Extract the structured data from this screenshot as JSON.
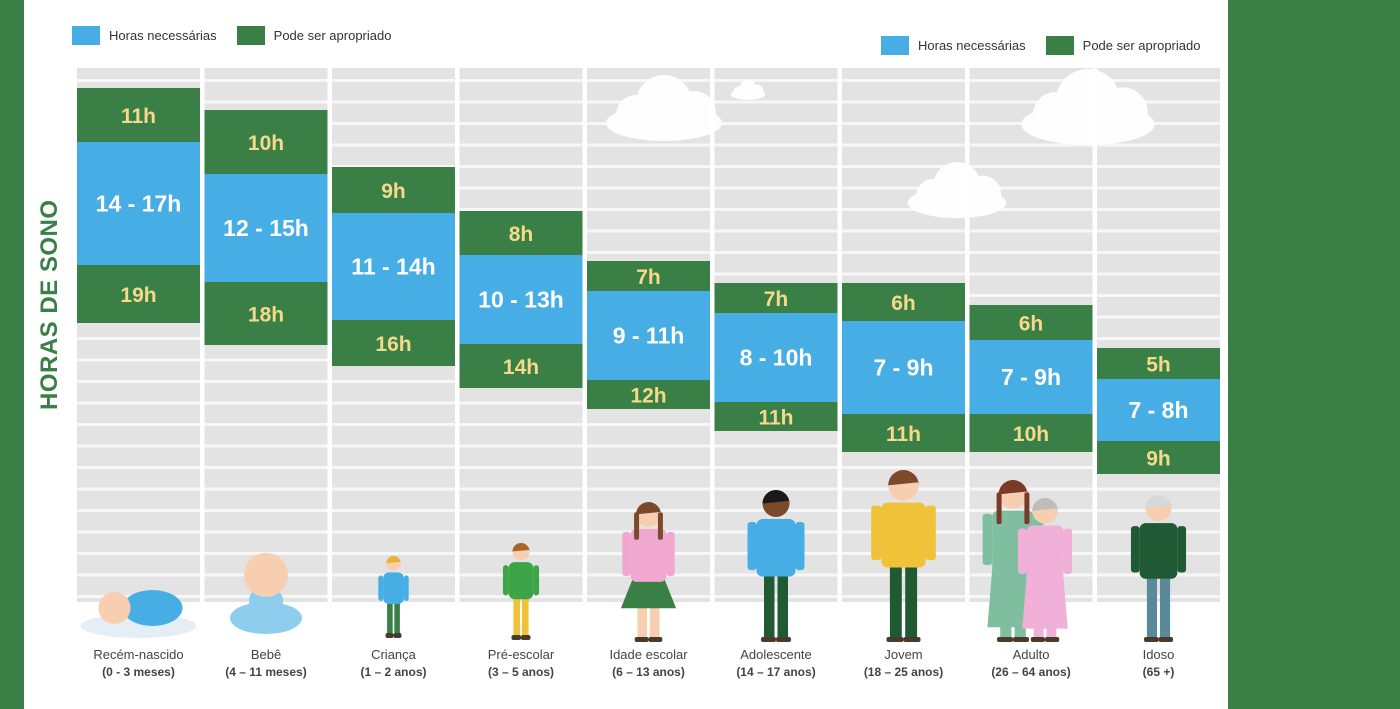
{
  "legend_top_left": {
    "needed": "Horas necessárias",
    "appropriate": "Pode ser apropriado"
  },
  "legend_top_right": {
    "needed": "Horas necessárias",
    "appropriate": "Pode ser apropriado"
  },
  "colors": {
    "needed": "#46aee5",
    "appropriate": "#3a8046",
    "grid": "#d9d9d9",
    "accent_text": "#f6d98a"
  },
  "chart_data": {
    "type": "bar",
    "ylabel": "HORAS DE SONO",
    "y_direction": "descending",
    "ylim": [
      4,
      20
    ],
    "legend": [
      "Horas necessárias",
      "Pode ser apropriado"
    ],
    "categories": [
      {
        "name": "Recém-nascido",
        "range": "(0 - 3 meses)",
        "appropriate_low": 11,
        "needed_low": 14,
        "needed_high": 17,
        "appropriate_high": 19,
        "needed_label": "14 - 17h",
        "low_label": "11h",
        "high_label": "19h"
      },
      {
        "name": "Bebê",
        "range": "(4 – 11 meses)",
        "appropriate_low": 10,
        "needed_low": 12,
        "needed_high": 15,
        "appropriate_high": 18,
        "needed_label": "12 - 15h",
        "low_label": "10h",
        "high_label": "18h"
      },
      {
        "name": "Criança",
        "range": "(1 – 2 anos)",
        "appropriate_low": 9,
        "needed_low": 11,
        "needed_high": 14,
        "appropriate_high": 16,
        "needed_label": "11 - 14h",
        "low_label": "9h",
        "high_label": "16h"
      },
      {
        "name": "Pré-escolar",
        "range": "(3 – 5 anos)",
        "appropriate_low": 8,
        "needed_low": 10,
        "needed_high": 13,
        "appropriate_high": 14,
        "needed_label": "10 - 13h",
        "low_label": "8h",
        "high_label": "14h"
      },
      {
        "name": "Idade escolar",
        "range": "(6 – 13 anos)",
        "appropriate_low": 7,
        "needed_low": 9,
        "needed_high": 11,
        "appropriate_high": 12,
        "needed_label": "9 - 11h",
        "low_label": "7h",
        "high_label": "12h"
      },
      {
        "name": "Adolescente",
        "range": "(14 – 17 anos)",
        "appropriate_low": 7,
        "needed_low": 8,
        "needed_high": 10,
        "appropriate_high": 11,
        "needed_label": "8 - 10h",
        "low_label": "7h",
        "high_label": "11h"
      },
      {
        "name": "Jovem",
        "range": "(18 – 25 anos)",
        "appropriate_low": 6,
        "needed_low": 7,
        "needed_high": 9,
        "appropriate_high": 11,
        "needed_label": "7 - 9h",
        "low_label": "6h",
        "high_label": "11h"
      },
      {
        "name": "Adulto",
        "range": "(26 – 64 anos)",
        "appropriate_low": 6,
        "needed_low": 7,
        "needed_high": 9,
        "appropriate_high": 10,
        "needed_label": "7 - 9h",
        "low_label": "6h",
        "high_label": "10h"
      },
      {
        "name": "Idoso",
        "range": "(65 +)",
        "appropriate_low": 5,
        "needed_low": 7,
        "needed_high": 8,
        "appropriate_high": 9,
        "needed_label": "7 - 8h",
        "low_label": "5h",
        "high_label": "9h"
      }
    ]
  }
}
